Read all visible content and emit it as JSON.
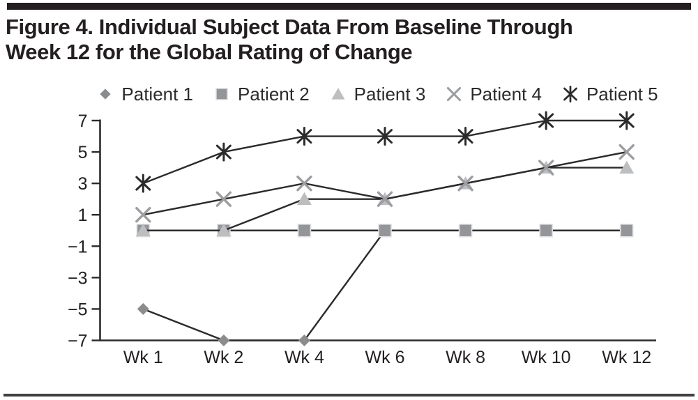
{
  "page": {
    "title_line1": "Figure 4. Individual Subject Data From Baseline Through",
    "title_line2": "Week 12 for the Global Rating of Change"
  },
  "chart_data": {
    "type": "line",
    "title": "Figure 4. Individual Subject Data From Baseline Through Week 12 for the Global Rating of Change",
    "categories": [
      "Wk 1",
      "Wk 2",
      "Wk 4",
      "Wk 6",
      "Wk 8",
      "Wk 10",
      "Wk 12"
    ],
    "series": [
      {
        "name": "Patient 1",
        "marker": "diamond",
        "color": "#8a8c8e",
        "values": [
          -5,
          -7,
          -7,
          0,
          0,
          0,
          0
        ]
      },
      {
        "name": "Patient 2",
        "marker": "square",
        "color": "#939598",
        "values": [
          0,
          0,
          0,
          0,
          0,
          0,
          0
        ]
      },
      {
        "name": "Patient 3",
        "marker": "triangle",
        "color": "#bcbec0",
        "values": [
          0,
          0,
          2,
          2,
          3,
          4,
          4
        ]
      },
      {
        "name": "Patient 4",
        "marker": "x",
        "color": "#9b9da0",
        "values": [
          1,
          2,
          3,
          2,
          3,
          4,
          5
        ]
      },
      {
        "name": "Patient 5",
        "marker": "asterisk",
        "color": "#2b2b2b",
        "values": [
          3,
          5,
          6,
          6,
          6,
          7,
          7
        ]
      }
    ],
    "xlabel": "",
    "ylabel": "",
    "ylim": [
      -7,
      7
    ],
    "y_ticks": [
      7,
      5,
      3,
      1,
      -1,
      -3,
      -5,
      -7
    ],
    "y_tick_labels": [
      "7",
      "5",
      "3",
      "1",
      "−1",
      "−3",
      "−5",
      "−7"
    ],
    "line_color": "#2b2b2b",
    "axis_color": "#2b2b2b",
    "text_color": "#231f20",
    "legend_position": "top",
    "grid": false
  }
}
